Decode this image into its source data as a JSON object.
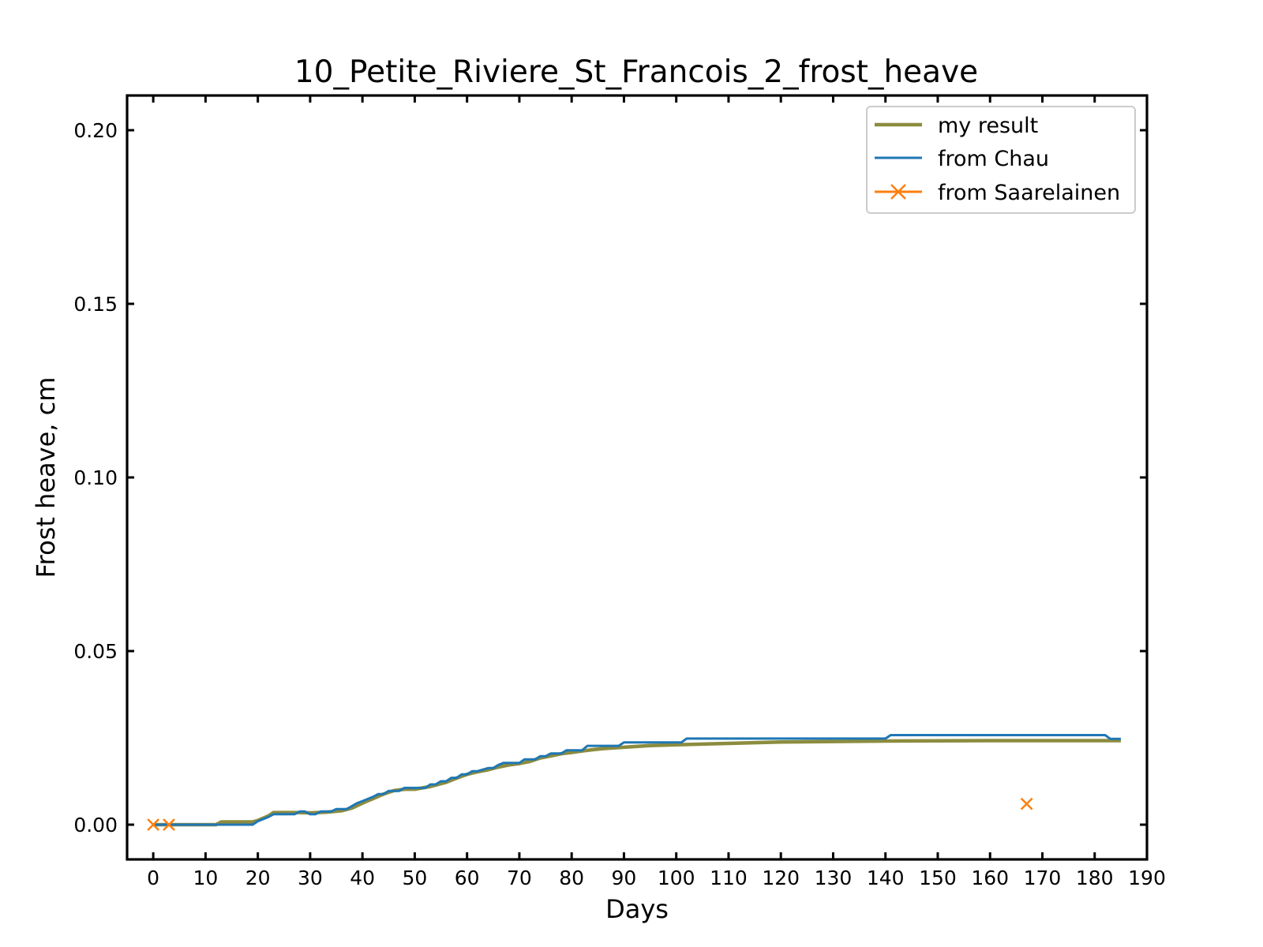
{
  "chart_data": {
    "type": "line",
    "title": "10_Petite_Riviere_St_Francois_2_frost_heave",
    "xlabel": "Days",
    "ylabel": "Frost heave, cm",
    "xlim": [
      -5,
      190
    ],
    "ylim": [
      -0.01,
      0.21
    ],
    "x_ticks": [
      0,
      10,
      20,
      30,
      40,
      50,
      60,
      70,
      80,
      90,
      100,
      110,
      120,
      130,
      140,
      150,
      160,
      170,
      180,
      190
    ],
    "y_ticks": [
      0.0,
      0.05,
      0.1,
      0.15,
      0.2
    ],
    "y_tick_labels": [
      "0.00",
      "0.05",
      "0.10",
      "0.15",
      "0.20"
    ],
    "grid": false,
    "legend_position": "top-right",
    "colors": {
      "my_result": "#8c8c3f",
      "chau": "#1f77b4",
      "saarelainen": "#ff7f0e"
    },
    "series": [
      {
        "name": "my result",
        "style": "line",
        "x": [
          0,
          12,
          13,
          19,
          20,
          22,
          23,
          27,
          30,
          33,
          36,
          38,
          40,
          42,
          44,
          46,
          48,
          50,
          53,
          56,
          58,
          60,
          62,
          64,
          66,
          68,
          70,
          72,
          74,
          76,
          78,
          80,
          82,
          84,
          86,
          88,
          90,
          95,
          100,
          110,
          120,
          140,
          160,
          185
        ],
        "y": [
          0.0,
          0.0,
          0.0008,
          0.0008,
          0.0012,
          0.0025,
          0.0035,
          0.0035,
          0.0034,
          0.0036,
          0.004,
          0.0048,
          0.0062,
          0.0075,
          0.0088,
          0.0098,
          0.0102,
          0.0102,
          0.011,
          0.0122,
          0.0134,
          0.0145,
          0.0152,
          0.0158,
          0.0166,
          0.0172,
          0.0176,
          0.0182,
          0.0192,
          0.0198,
          0.0204,
          0.0208,
          0.0212,
          0.0216,
          0.0219,
          0.0221,
          0.0223,
          0.0228,
          0.023,
          0.0234,
          0.0238,
          0.0241,
          0.0242,
          0.0242
        ]
      },
      {
        "name": "from Chau",
        "style": "line",
        "x": [
          0,
          12,
          19,
          20,
          22,
          23,
          27,
          28,
          29,
          30,
          31,
          32,
          34,
          35,
          37,
          39,
          40,
          42,
          43,
          44,
          45,
          47,
          48,
          52,
          53,
          54,
          55,
          56,
          57,
          58,
          59,
          60,
          61,
          62,
          64,
          65,
          66,
          67,
          70,
          71,
          73,
          74,
          75,
          76,
          78,
          79,
          82,
          83,
          89,
          90,
          101,
          102,
          140,
          141,
          182,
          183,
          185
        ],
        "y": [
          0.0,
          0.0,
          0.0,
          0.001,
          0.0022,
          0.003,
          0.003,
          0.0038,
          0.0038,
          0.003,
          0.003,
          0.0038,
          0.0038,
          0.0045,
          0.0045,
          0.0062,
          0.0068,
          0.008,
          0.0088,
          0.0088,
          0.0097,
          0.0097,
          0.0106,
          0.0106,
          0.0116,
          0.0116,
          0.0125,
          0.0125,
          0.0135,
          0.0135,
          0.0145,
          0.0145,
          0.0154,
          0.0154,
          0.0163,
          0.0163,
          0.0172,
          0.0178,
          0.0178,
          0.0188,
          0.0188,
          0.0197,
          0.0197,
          0.0205,
          0.0205,
          0.0214,
          0.0214,
          0.0227,
          0.0227,
          0.0237,
          0.0237,
          0.0248,
          0.0248,
          0.0258,
          0.0258,
          0.0247,
          0.0247
        ]
      },
      {
        "name": "from Saarelainen",
        "style": "marker-x",
        "x": [
          0,
          3,
          167
        ],
        "y": [
          0.0,
          0.0,
          0.006
        ]
      }
    ]
  }
}
